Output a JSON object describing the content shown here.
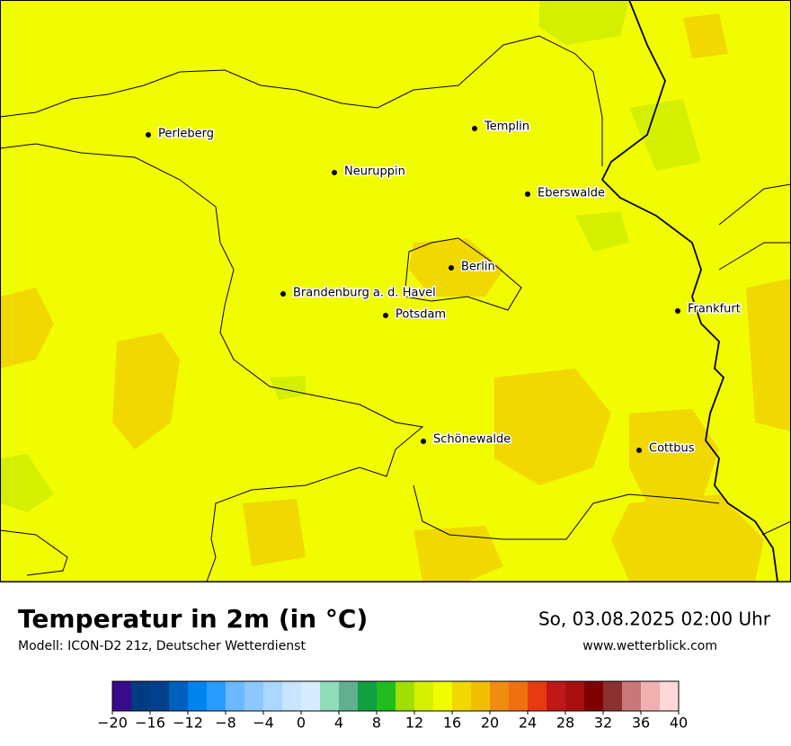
{
  "title": "Temperatur in 2m (in °C)",
  "subtitle": "Modell: ICON-D2 21z, Deutscher Wetterdienst",
  "datetime": "So, 03.08.2025 02:00 Uhr",
  "website": "www.wetterblick.com",
  "cities": [
    "Perleberg",
    "Templin",
    "Neuruppin",
    "Eberswalde",
    "Berlin",
    "Brandenburg a. d. Havel",
    "Potsdam",
    "Frankfurt",
    "Schönewalde",
    "Cottbus"
  ],
  "colorbar": {
    "range": [
      -20,
      40
    ],
    "colors": [
      "#3a0a8c",
      "#003c82",
      "#00408c",
      "#0060bc",
      "#0082f0",
      "#2a9cff",
      "#6cb8ff",
      "#8cc8ff",
      "#aad6ff",
      "#c8e4ff",
      "#d8ecff",
      "#90dcb8",
      "#60b090",
      "#10a040",
      "#20bc20",
      "#a0e000",
      "#d4f000",
      "#f2fc00",
      "#f0d800",
      "#f0c000",
      "#f08c10",
      "#f07010",
      "#e83a10",
      "#c01818",
      "#a81010",
      "#800000",
      "#8c3030",
      "#c87878",
      "#f0b0b0",
      "#ffd8d8"
    ],
    "ticks": [
      {
        "value": -20,
        "label": "−20"
      },
      {
        "value": -16,
        "label": "−16"
      },
      {
        "value": -12,
        "label": "−12"
      },
      {
        "value": -8,
        "label": "−8"
      },
      {
        "value": -4,
        "label": "−4"
      },
      0,
      4,
      8,
      12,
      16,
      20,
      24,
      28,
      32,
      36,
      40
    ]
  }
}
